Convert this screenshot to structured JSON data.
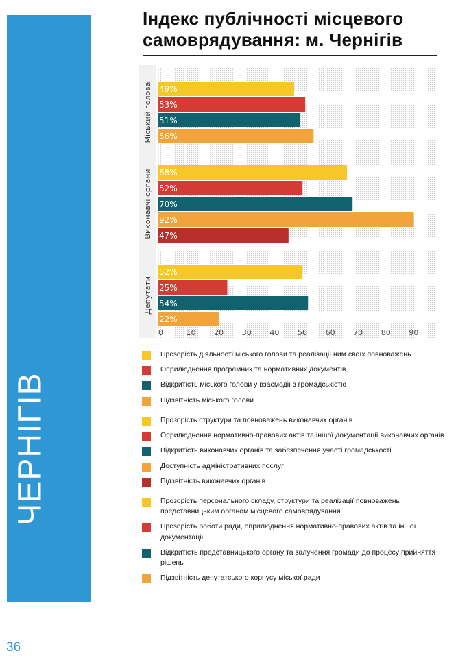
{
  "page": {
    "title": "Індекс публічності місцевого самоврядування: м. Чернігів",
    "sidebar_label": "ЧЕРНІГІВ",
    "page_number": "36"
  },
  "colors": {
    "yellow": "#f6c726",
    "red": "#d23c34",
    "teal": "#11616e",
    "orange": "#f2a33c",
    "darkred": "#b8302b",
    "accent": "#2f97d3"
  },
  "chart_data": {
    "type": "bar",
    "orientation": "horizontal",
    "title": "Індекс публічності місцевого самоврядування: м. Чернігів",
    "xlim": [
      0,
      100
    ],
    "x_ticks": [
      0,
      10,
      20,
      30,
      40,
      50,
      60,
      70,
      80,
      90
    ],
    "grid": true,
    "groups": [
      {
        "name": "Міський голова",
        "bars": [
          {
            "value": 49,
            "label": "49%",
            "color": "yellow"
          },
          {
            "value": 53,
            "label": "53%",
            "color": "red"
          },
          {
            "value": 51,
            "label": "51%",
            "color": "teal"
          },
          {
            "value": 56,
            "label": "56%",
            "color": "orange"
          }
        ]
      },
      {
        "name": "Виконавчі органи",
        "bars": [
          {
            "value": 68,
            "label": "68%",
            "color": "yellow"
          },
          {
            "value": 52,
            "label": "52%",
            "color": "red"
          },
          {
            "value": 70,
            "label": "70%",
            "color": "teal"
          },
          {
            "value": 92,
            "label": "92%",
            "color": "orange"
          },
          {
            "value": 47,
            "label": "47%",
            "color": "darkred"
          }
        ]
      },
      {
        "name": "Депутати",
        "bars": [
          {
            "value": 52,
            "label": "52%",
            "color": "yellow"
          },
          {
            "value": 25,
            "label": "25%",
            "color": "red"
          },
          {
            "value": 54,
            "label": "54%",
            "color": "teal"
          },
          {
            "value": 22,
            "label": "22%",
            "color": "orange"
          }
        ]
      }
    ]
  },
  "legend": [
    {
      "items": [
        {
          "label": "Прозорість діяльності міського голови та реалізації ним своїх повноважень",
          "color": "yellow"
        },
        {
          "label": "Оприлюднення програмних та нормативних документів",
          "color": "red"
        },
        {
          "label": "Відкритість міського голови у взаємодії з громадськістю",
          "color": "teal"
        },
        {
          "label": "Підзвітність міського голови",
          "color": "orange"
        }
      ]
    },
    {
      "items": [
        {
          "label": "Прозорість структури та повноважень виконавчих органів",
          "color": "yellow"
        },
        {
          "label": "Оприлюднення нормативно-правових актів та іншої документації виконавчих органів",
          "color": "red"
        },
        {
          "label": "Відкритість виконавчих органів та забезпечення участі громадськості",
          "color": "teal"
        },
        {
          "label": "Доступність адміністративних послуг",
          "color": "orange"
        },
        {
          "label": "Підзвітність виконавчих органів",
          "color": "darkred"
        }
      ]
    },
    {
      "items": [
        {
          "label": "Прозорість персонального складу, структури та реалізації повноважень представницьким органом місцевого самоврядування",
          "color": "yellow"
        },
        {
          "label": "Прозорість роботи ради, оприлюднення нормативно-правових актів та іншої документації",
          "color": "red"
        },
        {
          "label": "Відкритість представницького органу та залучення громади до процесу прийняття рішень",
          "color": "teal"
        },
        {
          "label": "Підзвітність депутатського корпусу міської ради",
          "color": "orange"
        }
      ]
    }
  ]
}
